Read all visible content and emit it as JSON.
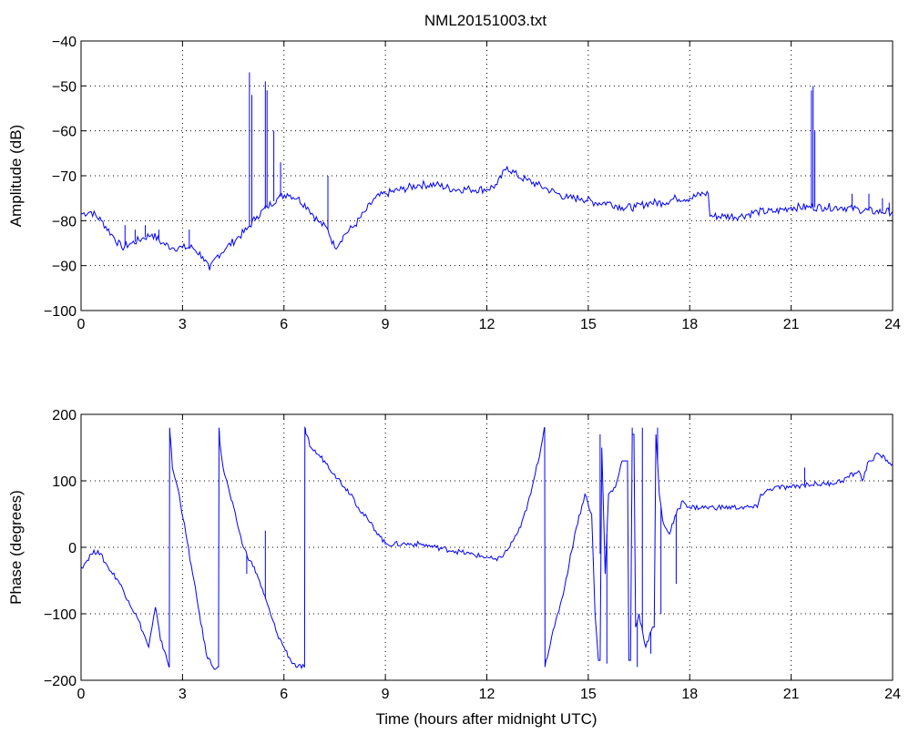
{
  "chart_data": [
    {
      "type": "line",
      "title": "NML20151003.txt",
      "xlabel": "",
      "ylabel": "Amplitude (dB)",
      "xlim": [
        0,
        24
      ],
      "ylim": [
        -100,
        -40
      ],
      "xticks": [
        "0",
        "3",
        "6",
        "9",
        "12",
        "15",
        "18",
        "21",
        "24"
      ],
      "yticks": [
        "−40",
        "−50",
        "−60",
        "−70",
        "−80",
        "−90",
        "−100"
      ],
      "grid": true,
      "color": "#0000ff",
      "series": [
        {
          "x": [
            0,
            0.3,
            0.6,
            0.9,
            1.2,
            1.5,
            1.8,
            2.1,
            2.4,
            2.7,
            3.0,
            3.3,
            3.6,
            3.8,
            4.0,
            4.3,
            4.6,
            4.9,
            5.2,
            5.5,
            5.8,
            6.1,
            6.4,
            6.7,
            7.0,
            7.3,
            7.5,
            7.8,
            8.1,
            8.4,
            8.7,
            9.0,
            9.5,
            10.0,
            10.5,
            11.0,
            11.5,
            12.0,
            12.3,
            12.6,
            12.9,
            13.2,
            13.5,
            13.8,
            14.1,
            14.4,
            14.8,
            15.2,
            15.6,
            16.0,
            16.4,
            16.8,
            17.2,
            17.6,
            18.0,
            18.4,
            18.55,
            18.6,
            19.0,
            19.5,
            20.0,
            20.5,
            21.0,
            21.5,
            22.0,
            22.5,
            23.0,
            23.5,
            24.0
          ],
          "y": [
            -78.5,
            -78,
            -80,
            -83,
            -86,
            -85,
            -84,
            -83,
            -85,
            -86,
            -86,
            -86,
            -88,
            -91,
            -88,
            -86,
            -84,
            -82,
            -79,
            -77,
            -75,
            -74,
            -75,
            -77,
            -80,
            -82,
            -86,
            -83,
            -81,
            -78,
            -75,
            -74,
            -73,
            -72,
            -72,
            -73,
            -73,
            -73,
            -72,
            -68,
            -70,
            -71,
            -72,
            -73,
            -74,
            -75,
            -75,
            -76,
            -76,
            -77,
            -77,
            -76,
            -76,
            -75,
            -75,
            -74,
            -74,
            -79,
            -79,
            -79,
            -78,
            -78,
            -77,
            -77,
            -77,
            -77,
            -77.5,
            -78,
            -78
          ]
        }
      ],
      "spikes": [
        {
          "x": 1.3,
          "y": -81
        },
        {
          "x": 1.6,
          "y": -82
        },
        {
          "x": 1.9,
          "y": -81
        },
        {
          "x": 2.3,
          "y": -82
        },
        {
          "x": 3.2,
          "y": -82
        },
        {
          "x": 4.98,
          "y": -47
        },
        {
          "x": 5.05,
          "y": -52
        },
        {
          "x": 5.45,
          "y": -49
        },
        {
          "x": 5.5,
          "y": -51
        },
        {
          "x": 5.7,
          "y": -60
        },
        {
          "x": 5.9,
          "y": -67
        },
        {
          "x": 7.3,
          "y": -70
        },
        {
          "x": 21.6,
          "y": -51
        },
        {
          "x": 21.65,
          "y": -50
        },
        {
          "x": 21.7,
          "y": -60
        },
        {
          "x": 22.8,
          "y": -74
        },
        {
          "x": 23.3,
          "y": -74
        },
        {
          "x": 23.7,
          "y": -75
        },
        {
          "x": 23.9,
          "y": -76
        }
      ]
    },
    {
      "type": "line",
      "title": "",
      "xlabel": "Time (hours after midnight UTC)",
      "ylabel": "Phase (degrees)",
      "xlim": [
        0,
        24
      ],
      "ylim": [
        -200,
        200
      ],
      "xticks": [
        "0",
        "3",
        "6",
        "9",
        "12",
        "15",
        "18",
        "21",
        "24"
      ],
      "yticks": [
        "200",
        "100",
        "0",
        "−100",
        "−200"
      ],
      "grid": true,
      "color": "#0000ff",
      "series": [
        {
          "x": [
            0,
            0.1,
            0.3,
            0.5,
            0.8,
            1.1,
            1.4,
            1.7,
            2.0,
            2.1,
            2.2,
            2.35,
            2.5,
            2.6,
            2.62,
            2.65,
            2.7,
            2.9,
            3.1,
            3.3,
            3.5,
            3.7,
            3.9,
            4.05,
            4.08,
            4.1,
            4.2,
            4.4,
            4.6,
            4.8,
            5.0,
            5.2,
            5.4,
            5.6,
            5.8,
            6.0,
            6.2,
            6.4,
            6.6,
            6.62,
            6.65,
            6.8,
            7.0,
            7.2,
            7.5,
            7.8,
            8.0,
            8.2,
            8.5,
            8.8,
            9.0,
            9.5,
            10.0,
            10.5,
            11.0,
            11.5,
            12.0,
            12.3,
            12.6,
            13.0,
            13.3,
            13.6,
            13.7,
            13.72,
            13.75,
            14.0,
            14.3,
            14.6,
            14.9,
            15.1,
            15.2,
            15.3,
            15.4,
            15.5,
            15.6,
            15.8,
            16.0,
            16.2,
            16.3,
            16.4,
            16.5,
            16.7,
            16.9,
            17.0,
            17.1,
            17.2,
            17.4,
            17.6,
            17.8,
            18.0,
            18.5,
            19.0,
            19.5,
            20.0,
            20.1,
            20.5,
            21.0,
            21.5,
            22.0,
            22.5,
            23.0,
            23.1,
            23.3,
            23.6,
            24.0
          ],
          "y": [
            -30,
            -25,
            -10,
            -5,
            -30,
            -50,
            -80,
            -110,
            -150,
            -120,
            -90,
            -140,
            -160,
            -180,
            180,
            160,
            120,
            80,
            20,
            -40,
            -100,
            -160,
            -180,
            -180,
            180,
            160,
            120,
            80,
            40,
            0,
            -20,
            -40,
            -70,
            -100,
            -130,
            -150,
            -170,
            -180,
            -180,
            180,
            170,
            150,
            140,
            130,
            110,
            90,
            80,
            60,
            40,
            20,
            5,
            5,
            5,
            0,
            -5,
            -10,
            -15,
            -20,
            -5,
            30,
            80,
            150,
            180,
            -180,
            -170,
            -120,
            -60,
            20,
            80,
            50,
            -100,
            -170,
            150,
            -40,
            80,
            90,
            130,
            -170,
            170,
            -120,
            -100,
            -150,
            -120,
            170,
            80,
            40,
            20,
            50,
            70,
            60,
            60,
            60,
            60,
            60,
            80,
            90,
            90,
            95,
            95,
            100,
            115,
            100,
            130,
            140,
            125
          ]
        }
      ],
      "spikes": [
        {
          "x": 4.9,
          "y": -40
        },
        {
          "x": 5.45,
          "y": 25
        },
        {
          "x": 5.6,
          "y": -100
        },
        {
          "x": 15.35,
          "y": 170
        },
        {
          "x": 15.55,
          "y": -175
        },
        {
          "x": 16.3,
          "y": 180
        },
        {
          "x": 16.45,
          "y": -180
        },
        {
          "x": 16.6,
          "y": 180
        },
        {
          "x": 16.85,
          "y": -160
        },
        {
          "x": 17.05,
          "y": 180
        },
        {
          "x": 17.15,
          "y": -100
        },
        {
          "x": 17.6,
          "y": -55
        },
        {
          "x": 21.4,
          "y": 120
        }
      ]
    }
  ]
}
